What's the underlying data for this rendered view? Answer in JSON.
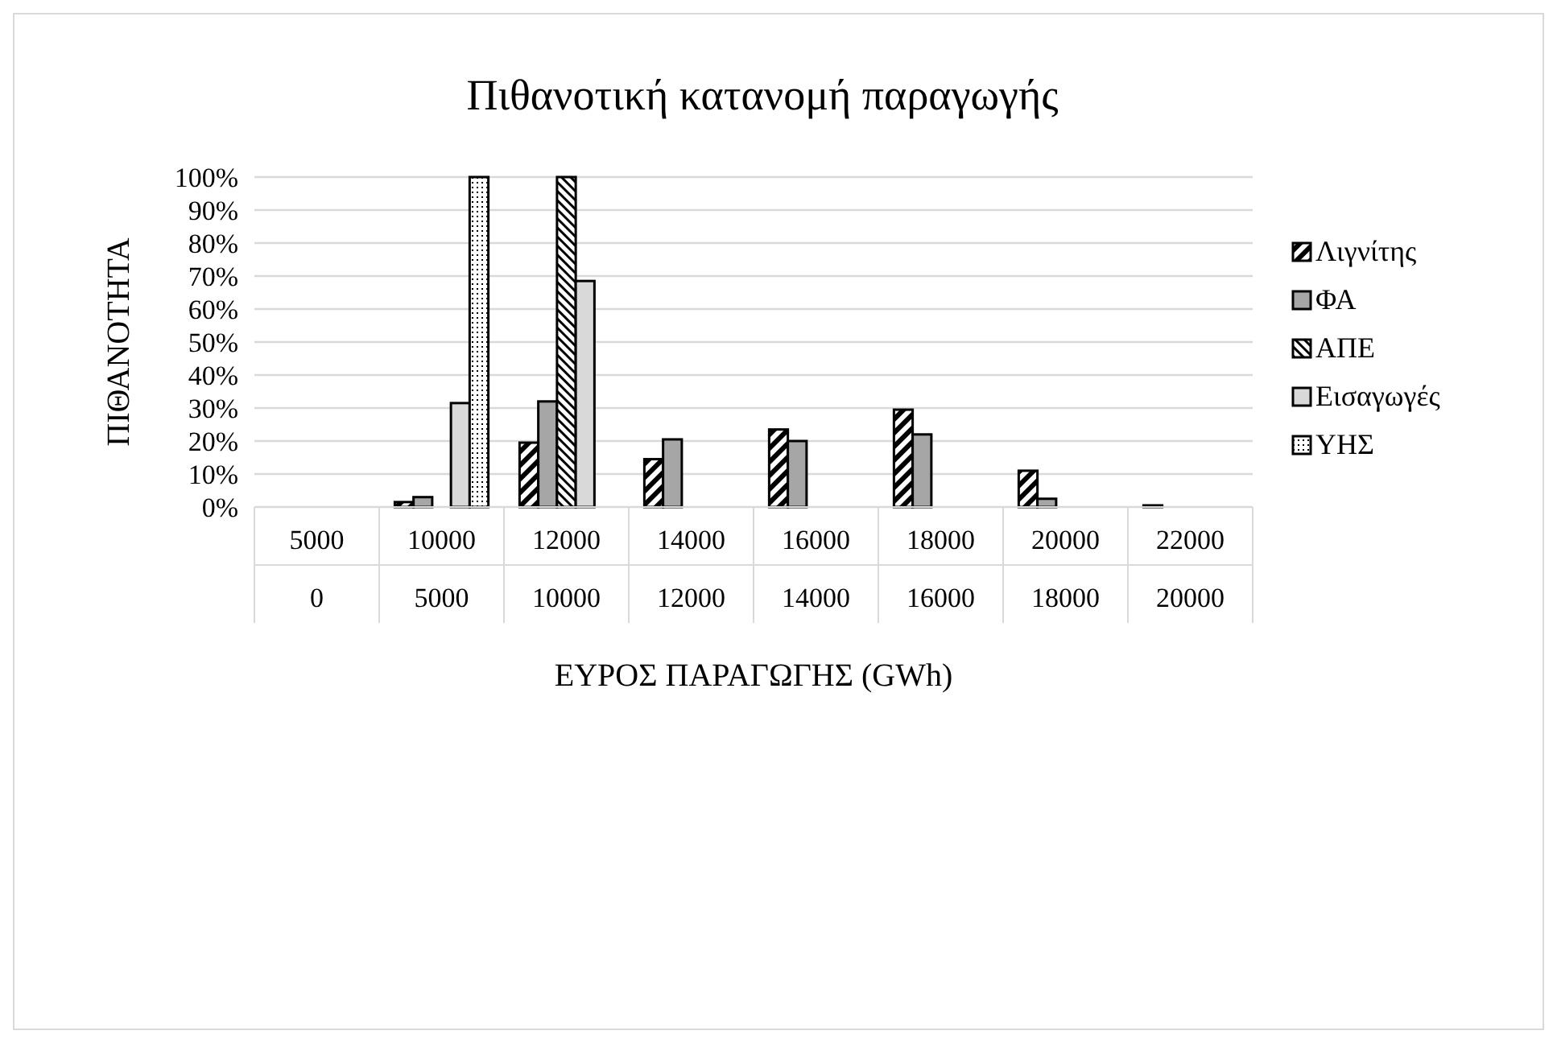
{
  "chart_data": {
    "type": "bar",
    "title": "Πιθανοτική κατανομή παραγωγής",
    "xlabel": "ΕΥΡΟΣ ΠΑΡΑΓΩΓΗΣ (GWh)",
    "ylabel": "ΠΙΘΑΝΟΤΗΤΑ",
    "categories": [
      "5000\n0",
      "10000\n5000",
      "12000\n10000",
      "14000\n12000",
      "16000\n14000",
      "18000\n16000",
      "20000\n18000",
      "22000\n20000"
    ],
    "series": [
      {
        "name": "Λιγνίτης",
        "color": "#000000",
        "values": [
          0,
          1.5,
          19.5,
          14.5,
          23.5,
          29.5,
          11,
          0.5
        ]
      },
      {
        "name": "ΦΑ",
        "color": "#a6a6a6",
        "values": [
          0,
          3,
          32,
          20.5,
          20,
          22,
          2.5,
          0
        ]
      },
      {
        "name": "ΑΠΕ",
        "color": "#000000",
        "values": [
          0,
          0,
          100,
          0,
          0,
          0,
          0,
          0
        ]
      },
      {
        "name": "Εισαγωγές",
        "color": "#d9d9d9",
        "values": [
          0,
          31.5,
          68.5,
          0,
          0,
          0,
          0,
          0
        ]
      },
      {
        "name": "ΥΗΣ",
        "color": "#000000",
        "values": [
          0,
          100,
          0,
          0,
          0,
          0,
          0,
          0
        ]
      }
    ],
    "ylim": [
      0,
      100
    ],
    "yticks": [
      {
        "value": 0,
        "label": "0%"
      },
      {
        "value": 10,
        "label": "10%"
      },
      {
        "value": 20,
        "label": "20%"
      },
      {
        "value": 30,
        "label": "30%"
      },
      {
        "value": 40,
        "label": "40%"
      },
      {
        "value": 50,
        "label": "50%"
      },
      {
        "value": 60,
        "label": "60%"
      },
      {
        "value": 70,
        "label": "70%"
      },
      {
        "value": 80,
        "label": "80%"
      },
      {
        "value": 90,
        "label": "90%"
      },
      {
        "value": 100,
        "label": "100%"
      }
    ],
    "grid": "y",
    "legend": "right"
  }
}
